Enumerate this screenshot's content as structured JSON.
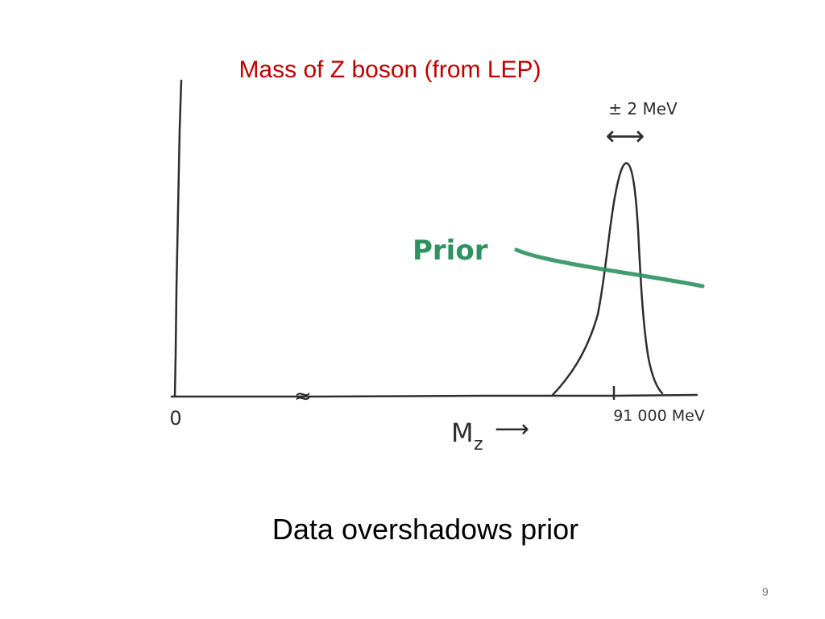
{
  "slide": {
    "title": "Mass of Z boson (from LEP)",
    "caption": "Data overshadows prior",
    "page_number": "9"
  },
  "diagram": {
    "origin_label": "0",
    "axis_break_symbol": "≈",
    "x_axis_label": "M",
    "x_axis_subscript": "z",
    "x_axis_arrow": "⟶",
    "peak_tick_label": "91 000 MeV",
    "width_label": "± 2 MeV",
    "width_arrow": "⟷",
    "prior_label": "Prior",
    "colors": {
      "title": "#c00000",
      "ink": "#2e2e2e",
      "prior": "#2e9160"
    }
  }
}
